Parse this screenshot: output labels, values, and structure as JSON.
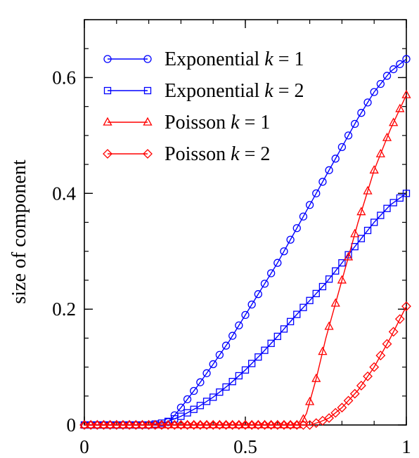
{
  "chart_data": {
    "type": "line",
    "title": "",
    "xlabel": "",
    "ylabel": "size of component",
    "xlim": [
      0,
      1
    ],
    "ylim": [
      0,
      0.7
    ],
    "xticks": [
      {
        "value": 0,
        "label": "0"
      },
      {
        "value": 0.5,
        "label": "0.5"
      },
      {
        "value": 1,
        "label": "1"
      }
    ],
    "yticks": [
      {
        "value": 0,
        "label": "0"
      },
      {
        "value": 0.2,
        "label": "0.2"
      },
      {
        "value": 0.4,
        "label": "0.4"
      },
      {
        "value": 0.6,
        "label": "0.6"
      }
    ],
    "x_minor_step": 0.1,
    "y_minor_step": 0.05,
    "grid": false,
    "legend_position": "top-left",
    "series": [
      {
        "name_prefix": "Exponential ",
        "name_var": "k",
        "name_suffix": " = 1",
        "color": "#0000ff",
        "marker": "circle",
        "points": [
          [
            0,
            0
          ],
          [
            0.1,
            0
          ],
          [
            0.2,
            0
          ],
          [
            0.25,
            0
          ],
          [
            0.27,
            0.01
          ],
          [
            0.3,
            0.03
          ],
          [
            0.35,
            0.066
          ],
          [
            0.4,
            0.105
          ],
          [
            0.45,
            0.145
          ],
          [
            0.5,
            0.19
          ],
          [
            0.55,
            0.235
          ],
          [
            0.6,
            0.28
          ],
          [
            0.65,
            0.33
          ],
          [
            0.7,
            0.38
          ],
          [
            0.75,
            0.43
          ],
          [
            0.8,
            0.48
          ],
          [
            0.85,
            0.53
          ],
          [
            0.9,
            0.575
          ],
          [
            0.95,
            0.61
          ],
          [
            1,
            0.632
          ]
        ]
      },
      {
        "name_prefix": "Exponential ",
        "name_var": "k",
        "name_suffix": " = 2",
        "color": "#0000ff",
        "marker": "square",
        "points": [
          [
            0,
            0
          ],
          [
            0.1,
            0
          ],
          [
            0.2,
            0
          ],
          [
            0.25,
            0.004
          ],
          [
            0.3,
            0.015
          ],
          [
            0.35,
            0.03
          ],
          [
            0.4,
            0.048
          ],
          [
            0.45,
            0.07
          ],
          [
            0.5,
            0.095
          ],
          [
            0.55,
            0.123
          ],
          [
            0.6,
            0.153
          ],
          [
            0.65,
            0.185
          ],
          [
            0.7,
            0.215
          ],
          [
            0.75,
            0.245
          ],
          [
            0.8,
            0.28
          ],
          [
            0.85,
            0.315
          ],
          [
            0.9,
            0.35
          ],
          [
            0.95,
            0.38
          ],
          [
            1,
            0.4
          ]
        ]
      },
      {
        "name_prefix": "Poisson ",
        "name_var": "k",
        "name_suffix": " = 1",
        "color": "#ff0000",
        "marker": "triangle",
        "points": [
          [
            0,
            0
          ],
          [
            0.1,
            0
          ],
          [
            0.2,
            0
          ],
          [
            0.3,
            0
          ],
          [
            0.4,
            0
          ],
          [
            0.5,
            0
          ],
          [
            0.6,
            0
          ],
          [
            0.67,
            0
          ],
          [
            0.69,
            0.02
          ],
          [
            0.72,
            0.08
          ],
          [
            0.75,
            0.15
          ],
          [
            0.8,
            0.25
          ],
          [
            0.85,
            0.35
          ],
          [
            0.9,
            0.44
          ],
          [
            0.95,
            0.51
          ],
          [
            1,
            0.57
          ]
        ]
      },
      {
        "name_prefix": "Poisson ",
        "name_var": "k",
        "name_suffix": " = 2",
        "color": "#ff0000",
        "marker": "diamond",
        "points": [
          [
            0,
            0
          ],
          [
            0.1,
            0
          ],
          [
            0.2,
            0
          ],
          [
            0.3,
            0
          ],
          [
            0.4,
            0
          ],
          [
            0.5,
            0
          ],
          [
            0.6,
            0
          ],
          [
            0.7,
            0
          ],
          [
            0.73,
            0.005
          ],
          [
            0.76,
            0.012
          ],
          [
            0.8,
            0.03
          ],
          [
            0.85,
            0.06
          ],
          [
            0.9,
            0.1
          ],
          [
            0.95,
            0.15
          ],
          [
            1,
            0.205
          ]
        ]
      }
    ]
  }
}
